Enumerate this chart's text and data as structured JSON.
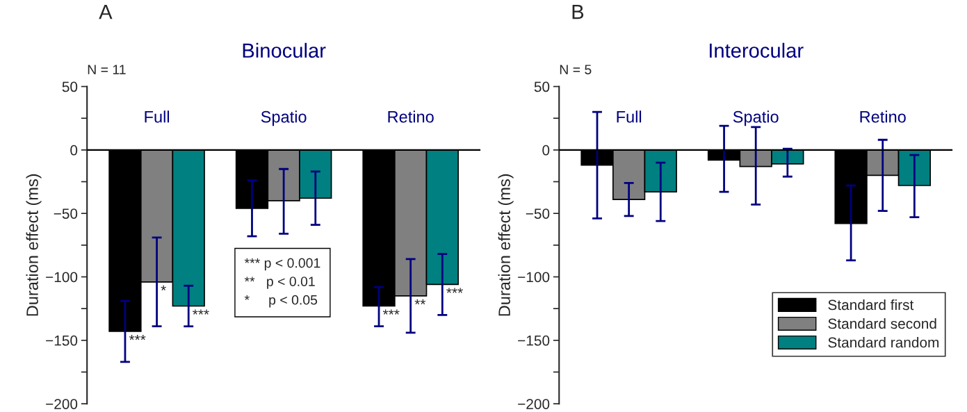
{
  "chart_data": [
    {
      "type": "bar",
      "title": "Binocular",
      "ylabel": "Duration effect (ms)",
      "categories": [
        "Full",
        "Spatio",
        "Retino"
      ],
      "series": [
        {
          "color": "#000000",
          "values": [
            -143,
            -46,
            -123
          ],
          "errors": [
            [
              -167,
              -119
            ],
            [
              -68,
              -24
            ],
            [
              -139,
              -108
            ]
          ],
          "value_labels": [
            "***",
            null,
            "***"
          ]
        },
        {
          "color": "#808080",
          "values": [
            -104,
            -40,
            -115
          ],
          "errors": [
            [
              -139,
              -69
            ],
            [
              -66,
              -15
            ],
            [
              -144,
              -86
            ]
          ],
          "value_labels": [
            "*",
            null,
            "**"
          ]
        },
        {
          "color": "#008080",
          "values": [
            -123,
            -38,
            -106
          ],
          "errors": [
            [
              -139,
              -107
            ],
            [
              -59,
              -17
            ],
            [
              -130,
              -82
            ]
          ],
          "value_labels": [
            "***",
            null,
            "***"
          ]
        }
      ],
      "ylim": [
        -200,
        50
      ],
      "yticks": [
        -200,
        {
          "value": -175,
          "label": null
        },
        -150,
        {
          "value": -125,
          "label": null
        },
        -100,
        {
          "value": -75,
          "label": null
        },
        -50,
        {
          "value": -25,
          "label": null
        },
        0,
        {
          "value": 25,
          "label": null
        },
        50
      ],
      "annotations": [
        "A",
        "N = 11",
        "*** p < 0.001\n**   p < 0.01\n*     p < 0.05"
      ],
      "legend": false,
      "grid": false
    },
    {
      "type": "bar",
      "title": "Interocular",
      "ylabel": "Duration effect (ms)",
      "categories": [
        "Full",
        "Spatio",
        "Retino"
      ],
      "series": [
        {
          "name": "Standard first",
          "color": "#000000",
          "values": [
            -12,
            -8,
            -58
          ],
          "errors": [
            [
              -54,
              30
            ],
            [
              -33,
              19
            ],
            [
              -87,
              -28
            ]
          ]
        },
        {
          "name": "Standard second",
          "color": "#808080",
          "values": [
            -39,
            -13,
            -20
          ],
          "errors": [
            [
              -52,
              -26
            ],
            [
              -43,
              18
            ],
            [
              -48,
              8
            ]
          ]
        },
        {
          "name": "Standard random",
          "color": "#008080",
          "values": [
            -33,
            -11,
            -28
          ],
          "errors": [
            [
              -56,
              -10
            ],
            [
              -21,
              1
            ],
            [
              -53,
              -4
            ]
          ]
        }
      ],
      "ylim": [
        -200,
        50
      ],
      "yticks": [
        -200,
        {
          "value": -175,
          "label": null
        },
        -150,
        {
          "value": -125,
          "label": null
        },
        -100,
        {
          "value": -75,
          "label": null
        },
        -50,
        {
          "value": -25,
          "label": null
        },
        0,
        {
          "value": 25,
          "label": null
        },
        50
      ],
      "annotations": [
        "B",
        "N = 5"
      ],
      "legend": "right",
      "grid": false
    }
  ]
}
